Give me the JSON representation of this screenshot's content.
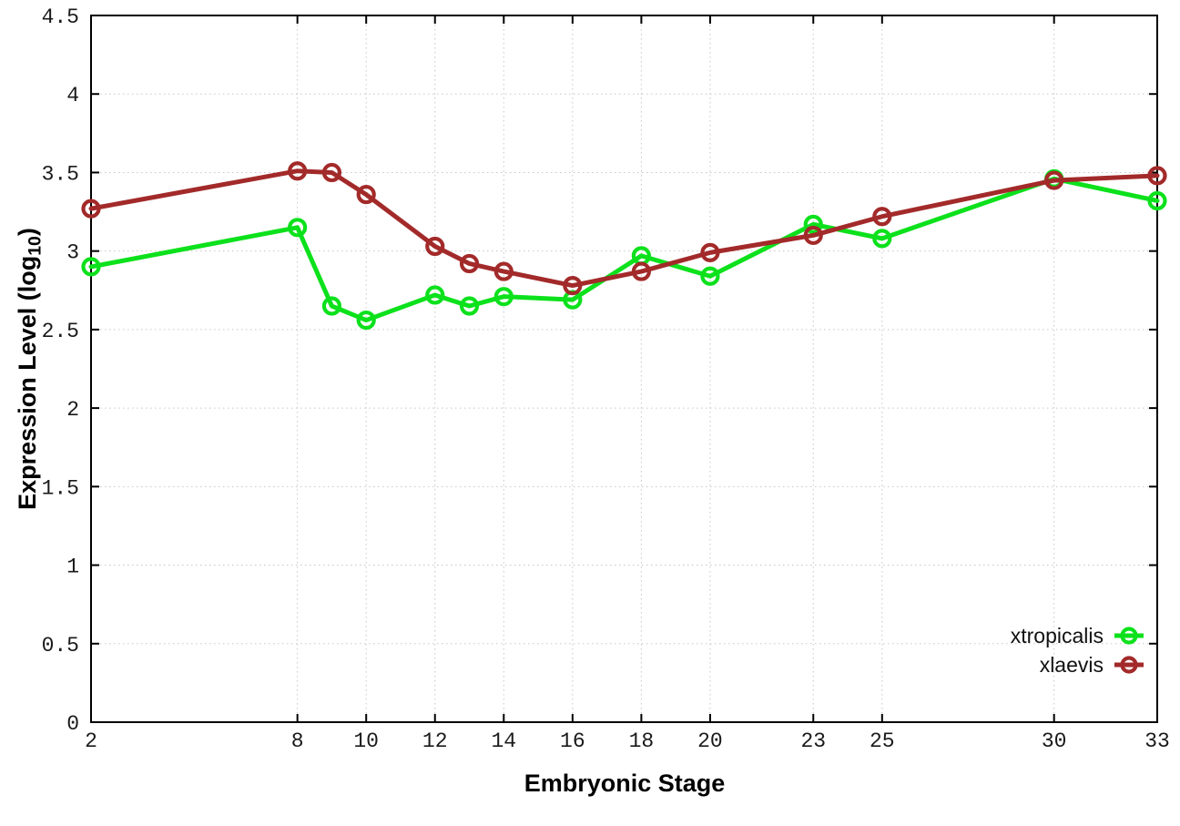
{
  "figure": {
    "background": "#ffffff",
    "axis_color": "#000000",
    "tick_label_color": "#1a1a1a"
  },
  "chart_data": {
    "type": "line",
    "title": "",
    "xlabel": "Embryonic Stage",
    "ylabel": "Expression Level (log10)",
    "ylabel_parts": {
      "pre": "Expression Level (log",
      "sub": "10",
      "post": ")"
    },
    "x": [
      2,
      8,
      9,
      10,
      12,
      13,
      14,
      16,
      18,
      20,
      23,
      25,
      30,
      33
    ],
    "series": [
      {
        "name": "xtropicalis",
        "color": "#0ce11c",
        "marker": "open-circle",
        "values": [
          2.9,
          3.15,
          2.65,
          2.56,
          2.72,
          2.65,
          2.71,
          2.69,
          2.97,
          2.84,
          3.17,
          3.08,
          3.46,
          3.32
        ]
      },
      {
        "name": "xlaevis",
        "color": "#a32a2a",
        "marker": "open-circle",
        "values": [
          3.27,
          3.51,
          3.5,
          3.36,
          3.03,
          2.92,
          2.87,
          2.78,
          2.87,
          2.99,
          3.1,
          3.22,
          3.45,
          3.48
        ]
      }
    ],
    "xlim": [
      2,
      33
    ],
    "ylim": [
      0,
      4.5
    ],
    "xticks": [
      2,
      8,
      10,
      12,
      14,
      16,
      18,
      20,
      23,
      25,
      30,
      33
    ],
    "xtick_labels": [
      "2",
      "8",
      "10",
      "12",
      "14",
      "16",
      "18",
      "20",
      "23",
      "25",
      "30",
      "33"
    ],
    "ytick_values": [
      0,
      0.5,
      1,
      1.5,
      2,
      2.5,
      3,
      3.5,
      4,
      4.5
    ],
    "ytick_labels": [
      "0",
      "0.5",
      "1",
      "1.5",
      "2",
      "2.5",
      "3",
      "3.5",
      "4",
      "4.5"
    ],
    "grid": true,
    "grid_color": "#c6c6c6",
    "legend_position": "inside bottom-right"
  }
}
